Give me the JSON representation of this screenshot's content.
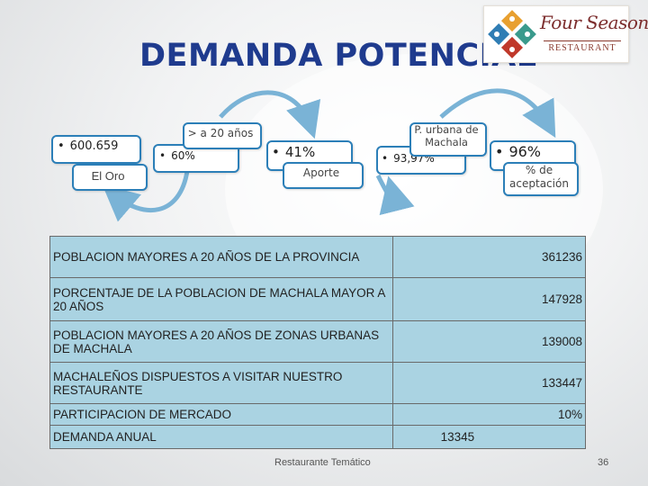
{
  "slide": {
    "title": "DEMANDA POTENCIAL",
    "footer_text": "Restaurante Temático",
    "page_number": "36"
  },
  "logo": {
    "brand": "Four Seasons",
    "subtitle": "RESTAURANT"
  },
  "flow": {
    "step1_value": "600.659",
    "step1_label": "El Oro",
    "step2_value": "60%",
    "step2_label": "> a 20 años",
    "step3_value": "41%",
    "step3_label": "Aporte",
    "step4_value": "93,97%",
    "step4_label": "P. urbana de Machala",
    "step5_value": "96%",
    "step5_label": "% de aceptación"
  },
  "table": {
    "rows": [
      {
        "label": "POBLACION MAYORES A 20 AÑOS DE LA PROVINCIA",
        "value": "361236"
      },
      {
        "label": "PORCENTAJE DE LA POBLACION DE MACHALA MAYOR A 20 AÑOS",
        "value": "147928"
      },
      {
        "label": "POBLACION MAYORES A 20 AÑOS DE ZONAS URBANAS DE MACHALA",
        "value": "139008"
      },
      {
        "label": "MACHALEÑOS DISPUESTOS A VISITAR NUESTRO RESTAURANTE",
        "value": "133447"
      },
      {
        "label": "PARTICIPACION DE MERCADO",
        "value": "10%"
      },
      {
        "label": "DEMANDA ANUAL",
        "value": "13345"
      }
    ]
  },
  "colors": {
    "title": "#1f3b8e",
    "box_border": "#2c7fb8",
    "table_fill": "#aad3e2"
  }
}
